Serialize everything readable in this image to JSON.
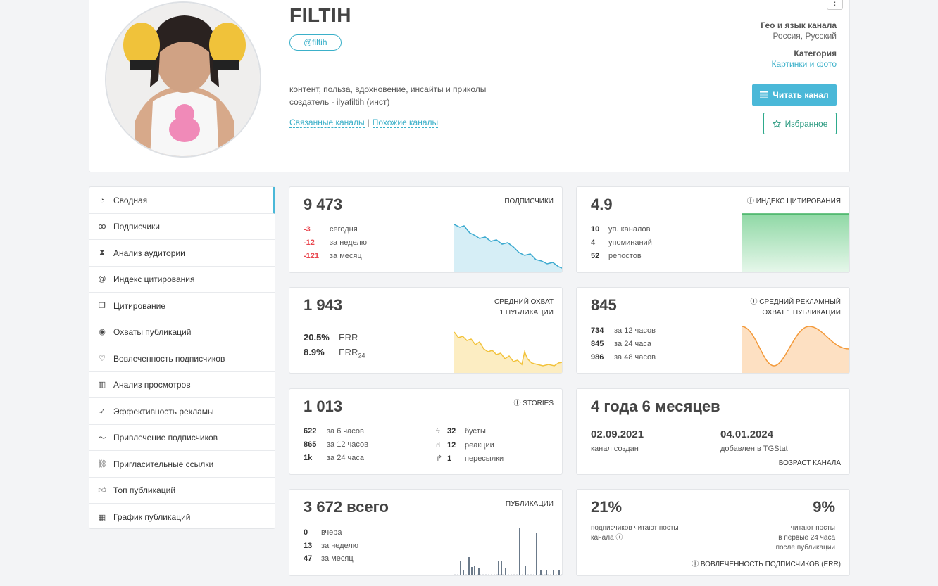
{
  "channel": {
    "title": "FILTIH",
    "handle": "@filtih",
    "description_line1": "контент, польза, вдохновение, инсайты и приколы",
    "description_line2": "создатель - ilyafiltih (инст)",
    "link_related": "Связанные каналы",
    "link_separator": "|",
    "link_similar": "Похожие каналы",
    "menu_label": "⋮",
    "geo_label": "Гео и язык канала",
    "geo_value": "Россия, Русский",
    "category_label": "Категория",
    "category_value": "Картинки и фото",
    "read_button": "Читать канал",
    "favorite_button": "Избранное"
  },
  "sidebar": {
    "items": [
      {
        "label": "Сводная",
        "icon": "dashboard-icon"
      },
      {
        "label": "Подписчики",
        "icon": "users-icon"
      },
      {
        "label": "Анализ аудитории",
        "icon": "hourglass-icon"
      },
      {
        "label": "Индекс цитирования",
        "icon": "at-icon"
      },
      {
        "label": "Цитирование",
        "icon": "quote-icon"
      },
      {
        "label": "Охваты публикаций",
        "icon": "eye-icon"
      },
      {
        "label": "Вовлеченность подписчиков",
        "icon": "heart-icon"
      },
      {
        "label": "Анализ просмотров",
        "icon": "bar-chart-icon"
      },
      {
        "label": "Эффективность рекламы",
        "icon": "rocket-icon"
      },
      {
        "label": "Привлечение подписчиков",
        "icon": "trend-icon"
      },
      {
        "label": "Пригласительные ссылки",
        "icon": "link-icon"
      },
      {
        "label": "Топ публикаций",
        "icon": "thumbs-up-icon"
      },
      {
        "label": "График публикаций",
        "icon": "calendar-icon"
      }
    ]
  },
  "subscribers": {
    "value": "9 473",
    "title": "ПОДПИСЧИКИ",
    "rows": [
      {
        "n": "-3",
        "label": "сегодня"
      },
      {
        "n": "-12",
        "label": "за неделю"
      },
      {
        "n": "-121",
        "label": "за месяц"
      }
    ]
  },
  "citation": {
    "value": "4.9",
    "title": "ИНДЕКС ЦИТИРОВАНИЯ",
    "rows": [
      {
        "n": "10",
        "label": "уп. каналов"
      },
      {
        "n": "4",
        "label": "упоминаний"
      },
      {
        "n": "52",
        "label": "репостов"
      }
    ]
  },
  "reach": {
    "value": "1 943",
    "title1": "СРЕДНИЙ ОХВАТ",
    "title2": "1 ПУБЛИКАЦИИ",
    "rows": [
      {
        "n": "20.5%",
        "label": "ERR"
      },
      {
        "n": "8.9%",
        "label": "ERR",
        "sub": "24"
      }
    ]
  },
  "ad_reach": {
    "value": "845",
    "title1": "СРЕДНИЙ РЕКЛАМНЫЙ",
    "title2": "ОХВАТ 1 ПУБЛИКАЦИИ",
    "rows": [
      {
        "n": "734",
        "label": "за 12 часов"
      },
      {
        "n": "845",
        "label": "за 24 часа"
      },
      {
        "n": "986",
        "label": "за 48 часов"
      }
    ]
  },
  "stories": {
    "value": "1 013",
    "title": "STORIES",
    "rows_left": [
      {
        "n": "622",
        "label": "за 6 часов"
      },
      {
        "n": "865",
        "label": "за 12 часов"
      },
      {
        "n": "1k",
        "label": "за 24 часа"
      }
    ],
    "rows_right": [
      {
        "n": "32",
        "label": "бусты",
        "icon": "lightning-icon"
      },
      {
        "n": "12",
        "label": "реакции",
        "icon": "thumbs-up-icon"
      },
      {
        "n": "1",
        "label": "пересылки",
        "icon": "forward-icon"
      }
    ]
  },
  "age": {
    "value": "4 года 6 месяцев",
    "created_date": "02.09.2021",
    "created_label": "канал создан",
    "added_date": "04.01.2024",
    "added_label": "добавлен в TGStat",
    "title": "ВОЗРАСТ КАНАЛА"
  },
  "posts": {
    "value": "3 672 всего",
    "title": "ПУБЛИКАЦИИ",
    "rows": [
      {
        "n": "0",
        "label": "вчера"
      },
      {
        "n": "13",
        "label": "за неделю"
      },
      {
        "n": "47",
        "label": "за месяц"
      }
    ]
  },
  "engagement": {
    "left_value": "21%",
    "left_line1": "подписчиков читают посты",
    "left_line2": "канала",
    "right_value": "9%",
    "right_line1": "читают посты",
    "right_line2": "в первые 24 часа",
    "right_line3": "после публикации",
    "title": "ВОВЛЕЧЕННОСТЬ ПОДПИСЧИКОВ (ERR)"
  },
  "colors": {
    "accent": "#4ab8d8",
    "negative": "#e9474f",
    "favorite": "#2eaa8c",
    "green_chart": "#5ac27a",
    "orange_chart": "#f39a3b",
    "yellow_chart": "#f2c23a",
    "blue_chart": "#3aa9cf"
  }
}
